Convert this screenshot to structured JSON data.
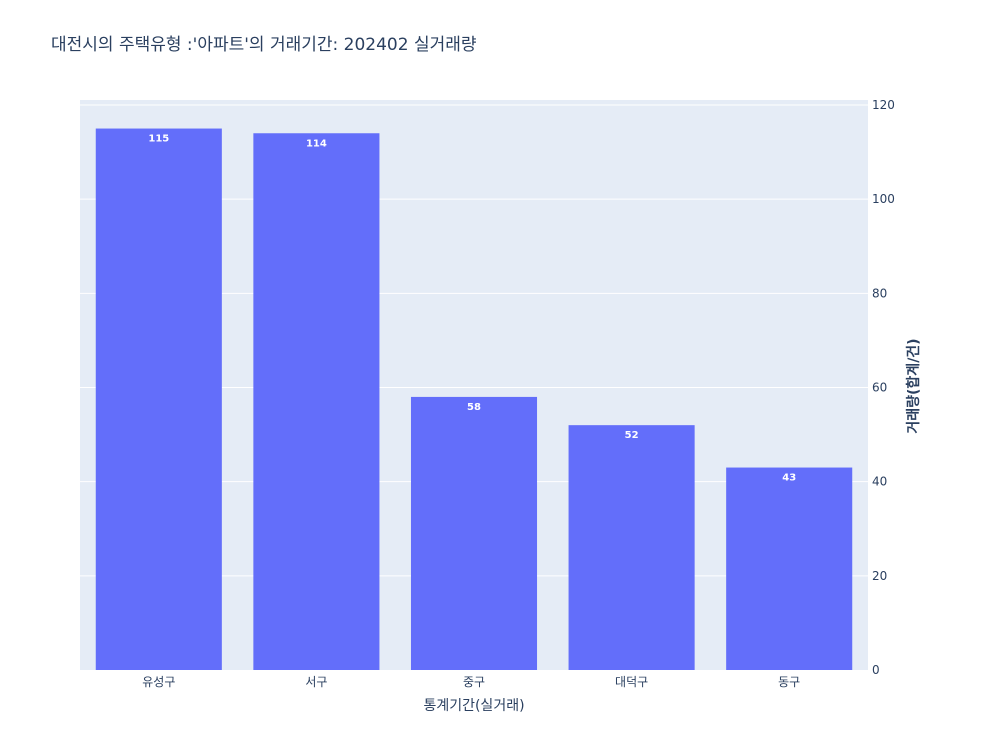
{
  "chart_data": {
    "type": "bar",
    "title": "대전시의 주택유형 :'아파트'의 거래기간: 202402 실거래량",
    "xlabel": "통계기간(실거래)",
    "ylabel": "거래량(합계/건)",
    "categories": [
      "유성구",
      "서구",
      "중구",
      "대덕구",
      "동구"
    ],
    "values": [
      115,
      114,
      58,
      52,
      43
    ],
    "data_labels": [
      "115",
      "114",
      "58",
      "52",
      "43"
    ],
    "ylim": [
      0,
      120
    ],
    "yticks": [
      0,
      20,
      40,
      60,
      80,
      100,
      120
    ],
    "y_axis_side": "right",
    "grid": true,
    "legend": "none",
    "colors": {
      "bar": "#636efa",
      "plot_bg": "#e5ecf6",
      "grid": "#ffffff",
      "text": "#2a3f5f"
    }
  }
}
